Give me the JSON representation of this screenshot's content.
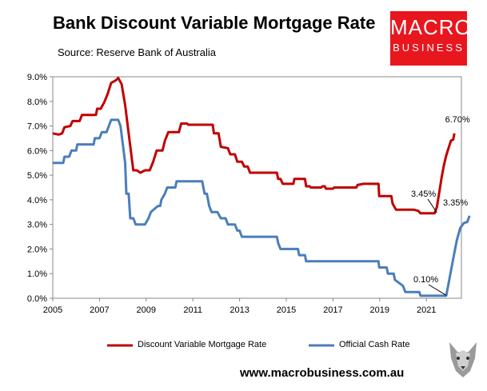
{
  "header": {
    "title": "Bank Discount Variable Mortgage Rate",
    "subtitle": "Source: Reserve Bank of Australia"
  },
  "logo": {
    "top": "MACRO",
    "bottom": "BUSINESS",
    "color": "#e8161d"
  },
  "footer": {
    "website": "www.macrobusiness.com.au"
  },
  "chart_data": {
    "type": "line",
    "title": "Bank Discount Variable Mortgage Rate",
    "xlabel": "",
    "ylabel": "",
    "xlim": [
      2005,
      2022.5
    ],
    "ylim": [
      0,
      9
    ],
    "x_ticks": [
      "2005",
      "2007",
      "2009",
      "2011",
      "2013",
      "2015",
      "2017",
      "2019",
      "2021"
    ],
    "y_ticks": [
      "0.0%",
      "1.0%",
      "2.0%",
      "3.0%",
      "4.0%",
      "5.0%",
      "6.0%",
      "7.0%",
      "8.0%",
      "9.0%"
    ],
    "grid": false,
    "legend_position": "bottom",
    "series": [
      {
        "name": "Discount Variable Mortgage Rate",
        "color": "#c00000",
        "points": [
          [
            2005.0,
            6.7
          ],
          [
            2005.25,
            6.65
          ],
          [
            2005.4,
            6.7
          ],
          [
            2005.5,
            6.95
          ],
          [
            2005.75,
            7.0
          ],
          [
            2005.85,
            7.2
          ],
          [
            2006.15,
            7.2
          ],
          [
            2006.25,
            7.45
          ],
          [
            2006.85,
            7.45
          ],
          [
            2006.9,
            7.7
          ],
          [
            2007.05,
            7.7
          ],
          [
            2007.2,
            7.95
          ],
          [
            2007.35,
            8.3
          ],
          [
            2007.5,
            8.75
          ],
          [
            2007.7,
            8.85
          ],
          [
            2007.8,
            8.95
          ],
          [
            2007.95,
            8.7
          ],
          [
            2008.1,
            7.85
          ],
          [
            2008.25,
            6.7
          ],
          [
            2008.35,
            5.95
          ],
          [
            2008.45,
            5.2
          ],
          [
            2008.6,
            5.2
          ],
          [
            2008.75,
            5.1
          ],
          [
            2008.95,
            5.2
          ],
          [
            2009.15,
            5.2
          ],
          [
            2009.3,
            5.55
          ],
          [
            2009.45,
            6.0
          ],
          [
            2009.7,
            6.0
          ],
          [
            2009.8,
            6.4
          ],
          [
            2009.95,
            6.75
          ],
          [
            2010.2,
            6.75
          ],
          [
            2010.4,
            6.75
          ],
          [
            2010.5,
            7.1
          ],
          [
            2010.75,
            7.1
          ],
          [
            2010.8,
            7.05
          ],
          [
            2011.85,
            7.05
          ],
          [
            2011.9,
            6.7
          ],
          [
            2012.1,
            6.7
          ],
          [
            2012.2,
            6.15
          ],
          [
            2012.5,
            6.1
          ],
          [
            2012.6,
            5.85
          ],
          [
            2012.8,
            5.85
          ],
          [
            2012.9,
            5.55
          ],
          [
            2013.1,
            5.55
          ],
          [
            2013.2,
            5.35
          ],
          [
            2013.35,
            5.35
          ],
          [
            2013.45,
            5.1
          ],
          [
            2014.6,
            5.1
          ],
          [
            2014.65,
            4.85
          ],
          [
            2014.75,
            4.85
          ],
          [
            2014.85,
            4.65
          ],
          [
            2015.3,
            4.65
          ],
          [
            2015.35,
            4.85
          ],
          [
            2015.8,
            4.85
          ],
          [
            2015.85,
            4.55
          ],
          [
            2016.0,
            4.55
          ],
          [
            2016.05,
            4.5
          ],
          [
            2016.5,
            4.5
          ],
          [
            2016.55,
            4.55
          ],
          [
            2016.65,
            4.55
          ],
          [
            2016.7,
            4.45
          ],
          [
            2017.0,
            4.45
          ],
          [
            2017.05,
            4.5
          ],
          [
            2018.0,
            4.5
          ],
          [
            2018.05,
            4.6
          ],
          [
            2018.3,
            4.65
          ],
          [
            2018.95,
            4.65
          ],
          [
            2018.98,
            4.15
          ],
          [
            2019.5,
            4.15
          ],
          [
            2019.55,
            3.85
          ],
          [
            2019.7,
            3.6
          ],
          [
            2020.2,
            3.6
          ],
          [
            2020.45,
            3.6
          ],
          [
            2020.65,
            3.55
          ],
          [
            2020.75,
            3.45
          ],
          [
            2021.2,
            3.45
          ],
          [
            2021.35,
            3.45
          ],
          [
            2021.45,
            3.7
          ],
          [
            2021.55,
            4.3
          ],
          [
            2021.65,
            4.9
          ],
          [
            2021.75,
            5.4
          ],
          [
            2021.85,
            5.8
          ],
          [
            2021.95,
            6.1
          ],
          [
            2022.05,
            6.4
          ],
          [
            2022.15,
            6.45
          ],
          [
            2022.2,
            6.7
          ]
        ]
      },
      {
        "name": "Official Cash Rate",
        "color": "#4a7ebb",
        "points": [
          [
            2005.0,
            5.5
          ],
          [
            2005.45,
            5.5
          ],
          [
            2005.5,
            5.75
          ],
          [
            2005.7,
            5.75
          ],
          [
            2005.8,
            6.0
          ],
          [
            2006.0,
            6.0
          ],
          [
            2006.05,
            6.25
          ],
          [
            2006.75,
            6.25
          ],
          [
            2006.8,
            6.5
          ],
          [
            2007.0,
            6.5
          ],
          [
            2007.1,
            6.75
          ],
          [
            2007.3,
            6.75
          ],
          [
            2007.4,
            7.0
          ],
          [
            2007.5,
            7.25
          ],
          [
            2007.7,
            7.25
          ],
          [
            2007.8,
            7.25
          ],
          [
            2007.9,
            7.0
          ],
          [
            2008.0,
            6.25
          ],
          [
            2008.1,
            5.5
          ],
          [
            2008.15,
            4.25
          ],
          [
            2008.25,
            4.25
          ],
          [
            2008.32,
            3.25
          ],
          [
            2008.45,
            3.25
          ],
          [
            2008.55,
            3.0
          ],
          [
            2008.95,
            3.0
          ],
          [
            2009.1,
            3.25
          ],
          [
            2009.2,
            3.5
          ],
          [
            2009.5,
            3.75
          ],
          [
            2009.6,
            3.75
          ],
          [
            2009.65,
            4.0
          ],
          [
            2009.8,
            4.25
          ],
          [
            2009.9,
            4.5
          ],
          [
            2010.25,
            4.5
          ],
          [
            2010.3,
            4.75
          ],
          [
            2011.0,
            4.75
          ],
          [
            2011.4,
            4.75
          ],
          [
            2011.5,
            4.25
          ],
          [
            2011.6,
            4.25
          ],
          [
            2011.7,
            3.75
          ],
          [
            2011.8,
            3.5
          ],
          [
            2012.05,
            3.5
          ],
          [
            2012.2,
            3.25
          ],
          [
            2012.4,
            3.25
          ],
          [
            2012.5,
            3.0
          ],
          [
            2012.8,
            3.0
          ],
          [
            2012.9,
            2.75
          ],
          [
            2013.0,
            2.75
          ],
          [
            2013.1,
            2.5
          ],
          [
            2014.5,
            2.5
          ],
          [
            2014.6,
            2.5
          ],
          [
            2014.65,
            2.25
          ],
          [
            2014.75,
            2.0
          ],
          [
            2015.5,
            2.0
          ],
          [
            2015.55,
            1.75
          ],
          [
            2015.8,
            1.75
          ],
          [
            2015.85,
            1.5
          ],
          [
            2018.95,
            1.5
          ],
          [
            2018.98,
            1.25
          ],
          [
            2019.3,
            1.25
          ],
          [
            2019.35,
            1.0
          ],
          [
            2019.6,
            1.0
          ],
          [
            2019.65,
            0.75
          ],
          [
            2020.0,
            0.5
          ],
          [
            2020.1,
            0.25
          ],
          [
            2020.7,
            0.25
          ],
          [
            2020.75,
            0.1
          ],
          [
            2021.85,
            0.1
          ],
          [
            2021.9,
            0.35
          ],
          [
            2022.0,
            0.85
          ],
          [
            2022.1,
            1.35
          ],
          [
            2022.2,
            1.85
          ],
          [
            2022.3,
            2.35
          ],
          [
            2022.45,
            2.85
          ],
          [
            2022.6,
            3.05
          ],
          [
            2022.75,
            3.1
          ],
          [
            2022.85,
            3.35
          ]
        ]
      }
    ],
    "annotations": [
      {
        "text": "6.70%",
        "series": 0
      },
      {
        "text": "3.45%",
        "series": 0
      },
      {
        "text": "3.35%",
        "series": 1
      },
      {
        "text": "0.10%",
        "series": 1
      }
    ]
  }
}
